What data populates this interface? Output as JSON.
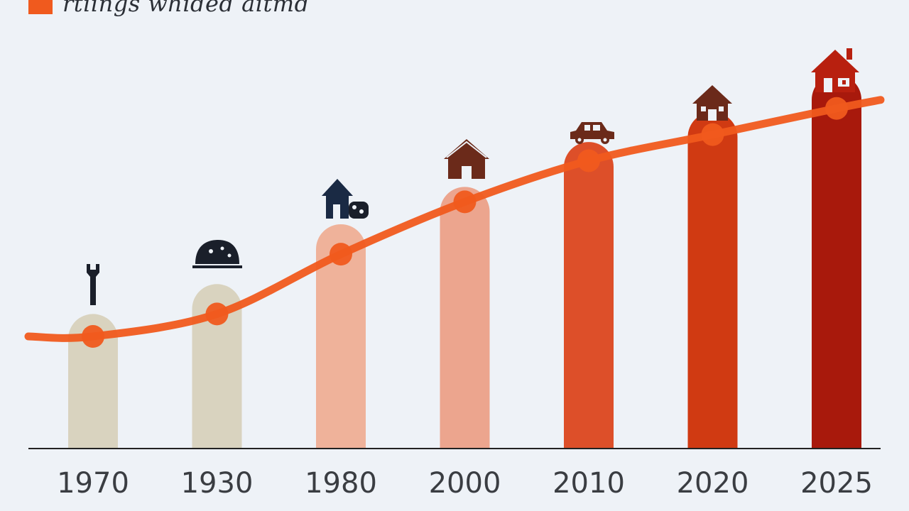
{
  "legend": {
    "label": "rtiings whided aitmd",
    "swatch_color": "#f05a1e"
  },
  "chart_data": {
    "type": "bar",
    "categories": [
      "1970",
      "1930",
      "1980",
      "2000",
      "2010",
      "2020",
      "2025"
    ],
    "bar_values": [
      18,
      22,
      30,
      35,
      41,
      45,
      50
    ],
    "bar_colors": [
      "#d9d3bf",
      "#d9d3bf",
      "#efb29a",
      "#eca58e",
      "#dd4f29",
      "#d03a12",
      "#a8190c"
    ],
    "line_series": {
      "values": [
        15,
        18,
        26,
        33,
        38.5,
        42,
        45.5
      ],
      "color": "#f05a1e"
    },
    "bar_icons": [
      "wrench-icon",
      "bread-icon",
      "house-with-basket-icon",
      "house-icon",
      "car-icon",
      "small-house-icon",
      "red-house-icon"
    ],
    "ylim": [
      0,
      60
    ],
    "grid": false
  }
}
